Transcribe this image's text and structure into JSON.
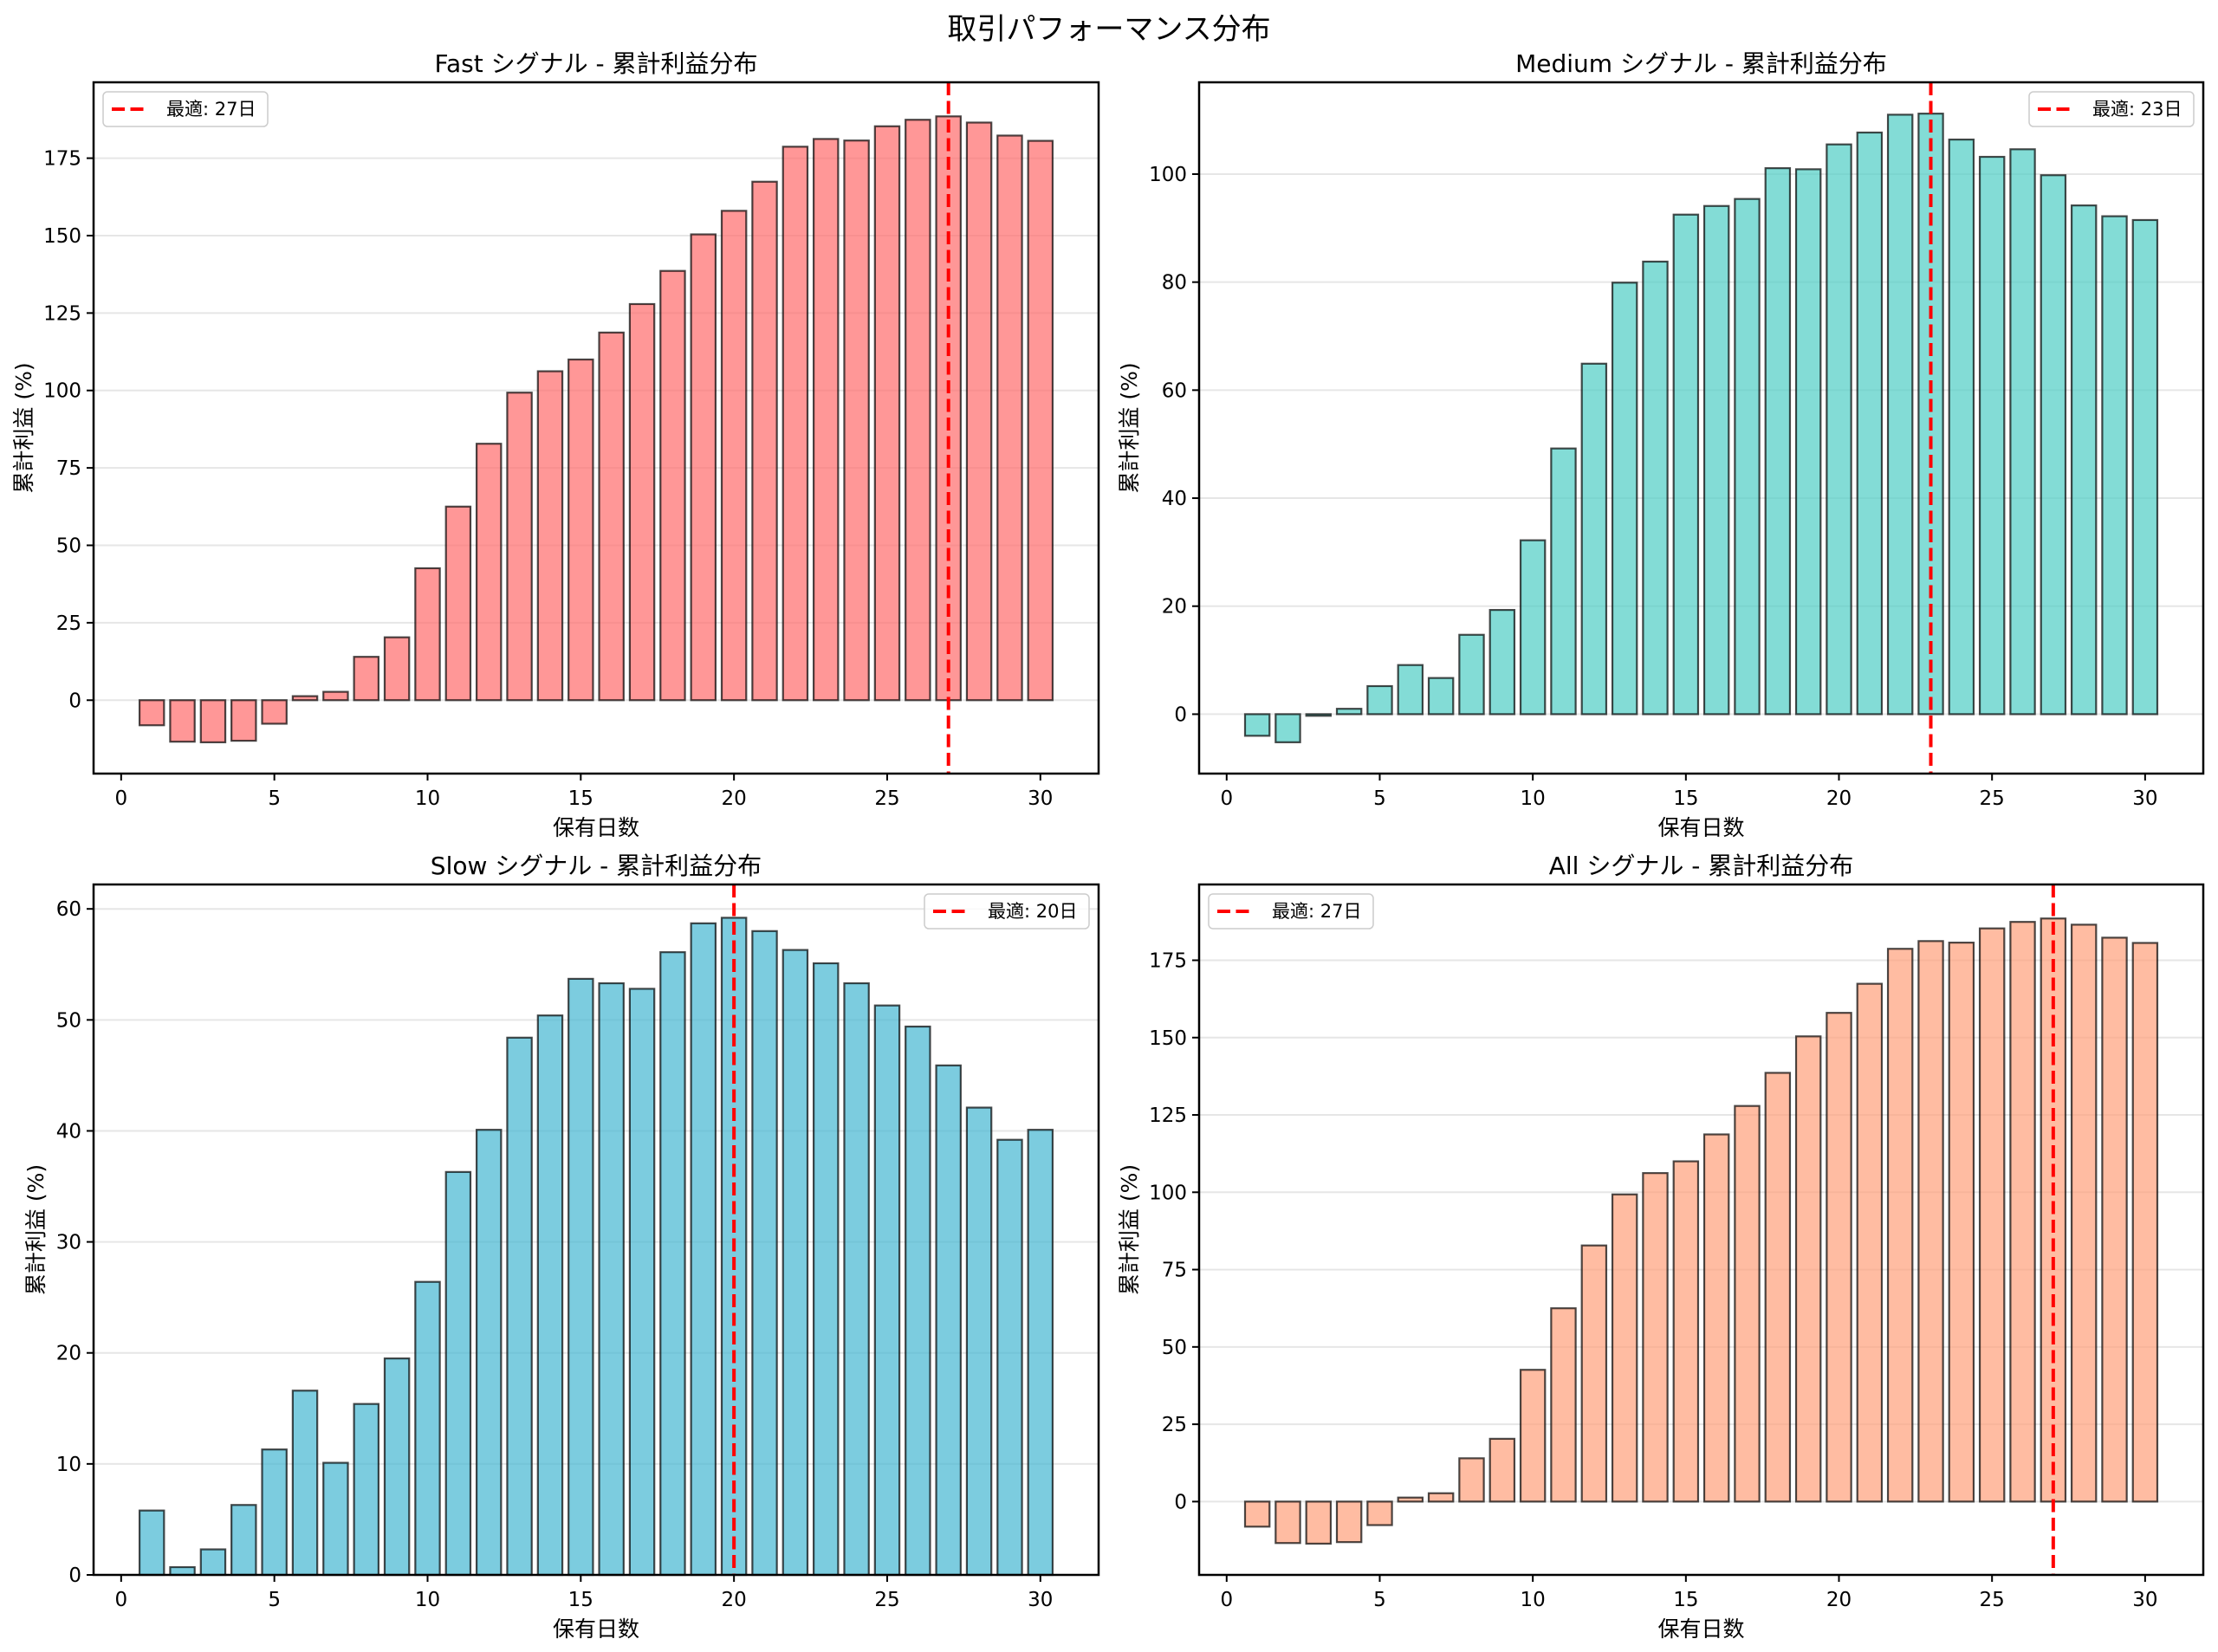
{
  "figure": {
    "title": "取引パフォーマンス分布"
  },
  "colors": {
    "fast": "#FF6B6B",
    "medium": "#4ECDC4",
    "slow": "#45B7D1",
    "all": "#FFA07A",
    "bar_edge": "#000000",
    "optimal_line": "#FF0000",
    "grid": "#e6e6e6"
  },
  "chart_data": [
    {
      "id": "fast",
      "type": "bar",
      "title": "Fast シグナル - 累計利益分布",
      "xlabel": "保有日数",
      "ylabel": "累計利益 (%)",
      "x": [
        1,
        2,
        3,
        4,
        5,
        6,
        7,
        8,
        9,
        10,
        11,
        12,
        13,
        14,
        15,
        16,
        17,
        18,
        19,
        20,
        21,
        22,
        23,
        24,
        25,
        26,
        27,
        28,
        29,
        30
      ],
      "values": [
        -8.1,
        -13.4,
        -13.6,
        -13.1,
        -7.6,
        1.3,
        2.7,
        14.0,
        20.3,
        42.6,
        62.5,
        82.8,
        99.3,
        106.2,
        110.0,
        118.7,
        127.9,
        138.6,
        150.4,
        158.0,
        167.4,
        178.7,
        181.2,
        180.7,
        185.3,
        187.4,
        188.5,
        186.5,
        182.3,
        180.6
      ],
      "xlim": [
        -0.9,
        31.9
      ],
      "ylim": [
        -23.7,
        199.5
      ],
      "xticks": [
        0,
        5,
        10,
        15,
        20,
        25,
        30
      ],
      "yticks": [
        0,
        25,
        50,
        75,
        100,
        125,
        150,
        175
      ],
      "grid": "y",
      "optimal_day": 27,
      "legend": {
        "label": "最適: 27日",
        "position": "upper-left"
      }
    },
    {
      "id": "medium",
      "type": "bar",
      "title": "Medium シグナル - 累計利益分布",
      "xlabel": "保有日数",
      "ylabel": "累計利益 (%)",
      "x": [
        1,
        2,
        3,
        4,
        5,
        6,
        7,
        8,
        9,
        10,
        11,
        12,
        13,
        14,
        15,
        16,
        17,
        18,
        19,
        20,
        21,
        22,
        23,
        24,
        25,
        26,
        27,
        28,
        29,
        30
      ],
      "values": [
        -4.0,
        -5.2,
        -0.3,
        1.0,
        5.2,
        9.1,
        6.7,
        14.7,
        19.3,
        32.2,
        49.2,
        64.9,
        79.9,
        83.8,
        92.5,
        94.1,
        95.4,
        101.1,
        100.9,
        105.5,
        107.7,
        111.0,
        111.2,
        106.4,
        103.2,
        104.6,
        99.8,
        94.2,
        92.2,
        91.5
      ],
      "xlim": [
        -0.9,
        31.9
      ],
      "ylim": [
        -11.0,
        117.0
      ],
      "xticks": [
        0,
        5,
        10,
        15,
        20,
        25,
        30
      ],
      "yticks": [
        0,
        20,
        40,
        60,
        80,
        100
      ],
      "grid": "y",
      "optimal_day": 23,
      "legend": {
        "label": "最適: 23日",
        "position": "upper-right"
      }
    },
    {
      "id": "slow",
      "type": "bar",
      "title": "Slow シグナル - 累計利益分布",
      "xlabel": "保有日数",
      "ylabel": "累計利益 (%)",
      "x": [
        1,
        2,
        3,
        4,
        5,
        6,
        7,
        8,
        9,
        10,
        11,
        12,
        13,
        14,
        15,
        16,
        17,
        18,
        19,
        20,
        21,
        22,
        23,
        24,
        25,
        26,
        27,
        28,
        29,
        30
      ],
      "values": [
        5.8,
        0.7,
        2.3,
        6.3,
        11.3,
        16.6,
        10.1,
        15.4,
        19.5,
        26.4,
        36.3,
        40.1,
        48.4,
        50.4,
        53.7,
        53.3,
        52.8,
        56.1,
        58.7,
        59.2,
        58.0,
        56.3,
        55.1,
        53.3,
        51.3,
        49.4,
        45.9,
        42.1,
        39.2,
        40.1
      ],
      "xlim": [
        -0.9,
        31.9
      ],
      "ylim": [
        0,
        62.2
      ],
      "xticks": [
        0,
        5,
        10,
        15,
        20,
        25,
        30
      ],
      "yticks": [
        0,
        10,
        20,
        30,
        40,
        50,
        60
      ],
      "grid": "y",
      "optimal_day": 20,
      "legend": {
        "label": "最適: 20日",
        "position": "upper-right"
      }
    },
    {
      "id": "all",
      "type": "bar",
      "title": "All シグナル - 累計利益分布",
      "xlabel": "保有日数",
      "ylabel": "累計利益 (%)",
      "x": [
        1,
        2,
        3,
        4,
        5,
        6,
        7,
        8,
        9,
        10,
        11,
        12,
        13,
        14,
        15,
        16,
        17,
        18,
        19,
        20,
        21,
        22,
        23,
        24,
        25,
        26,
        27,
        28,
        29,
        30
      ],
      "values": [
        -8.1,
        -13.4,
        -13.6,
        -13.1,
        -7.6,
        1.3,
        2.7,
        14.0,
        20.3,
        42.6,
        62.5,
        82.8,
        99.3,
        106.2,
        110.0,
        118.7,
        127.9,
        138.6,
        150.4,
        158.0,
        167.4,
        178.7,
        181.2,
        180.7,
        185.3,
        187.4,
        188.5,
        186.5,
        182.3,
        180.6
      ],
      "xlim": [
        -0.9,
        31.9
      ],
      "ylim": [
        -23.7,
        199.5
      ],
      "xticks": [
        0,
        5,
        10,
        15,
        20,
        25,
        30
      ],
      "yticks": [
        0,
        25,
        50,
        75,
        100,
        125,
        150,
        175
      ],
      "grid": "y",
      "optimal_day": 27,
      "legend": {
        "label": "最適: 27日",
        "position": "upper-left"
      }
    }
  ]
}
